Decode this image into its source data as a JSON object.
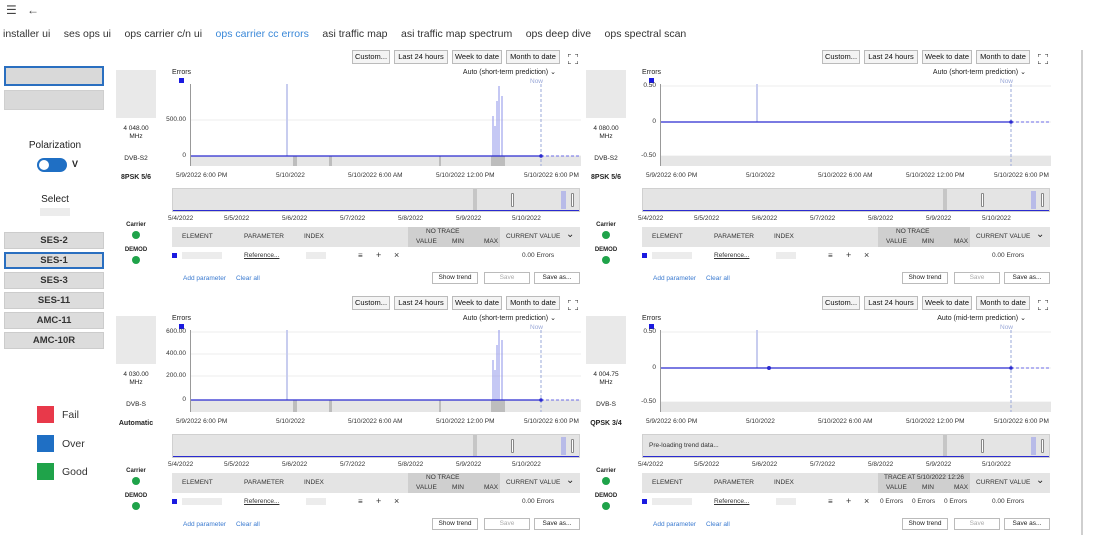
{
  "topbar": {
    "menu_icon": "hamburger-icon",
    "back_icon": "back-arrow-icon"
  },
  "nav": {
    "items": [
      "installer ui",
      "ses ops ui",
      "ops carrier c/n ui",
      "ops carrier cc errors",
      "asi traffic map",
      "asi traffic map spectrum",
      "ops deep dive",
      "ops spectral scan"
    ],
    "active_index": 3
  },
  "left": {
    "polarization_label": "Polarization",
    "polarization_value": "V",
    "select_label": "Select",
    "satellites": [
      "SES-2",
      "SES-1",
      "SES-3",
      "SES-11",
      "AMC-11",
      "AMC-10R"
    ],
    "selected_satellite": "SES-1",
    "legend": [
      {
        "label": "Fail",
        "color": "#e8394a"
      },
      {
        "label": "Over",
        "color": "#1f6fc4"
      },
      {
        "label": "Good",
        "color": "#1fa34a"
      }
    ]
  },
  "colors": {
    "accent": "#3a88d8",
    "series": "#2a2ad0",
    "dot_good": "#1fa34a"
  },
  "panels": [
    {
      "time_buttons": [
        "Custom...",
        "Last 24 hours",
        "Week to date",
        "Month to date"
      ],
      "freq": "4 048.00",
      "freq_unit": "MHz",
      "mode": "DVB-S2",
      "modcod": "8PSK 5/6",
      "carrier_label": "Carrier",
      "demod_label": "DEMOD",
      "series_label": "Errors",
      "prediction": "Auto (short-term prediction)",
      "now_label": "Now",
      "y_ticks": [
        "500.00",
        "0"
      ],
      "x_ticks": [
        "5/9/2022 6:00 PM",
        "5/10/2022",
        "5/10/2022 6:00 AM",
        "5/10/2022 12:00 PM",
        "5/10/2022 6:00 PM"
      ],
      "scroll_ticks": [
        "5/4/2022",
        "5/5/2022",
        "5/6/2022",
        "5/7/2022",
        "5/8/2022",
        "5/9/2022",
        "5/10/2022"
      ],
      "table": {
        "element": "ELEMENT",
        "parameter": "PARAMETER",
        "index": "INDEX",
        "trace": "NO TRACE",
        "value": "VALUE",
        "min": "MIN",
        "max": "MAX",
        "current": "CURRENT VALUE",
        "param_value": "Reference...",
        "current_value": "0.00 Errors"
      },
      "add_parameter": "Add parameter",
      "clear_all": "Clear all",
      "show_trend": "Show trend",
      "save": "Save",
      "save_as": "Save as..."
    },
    {
      "time_buttons": [
        "Custom...",
        "Last 24 hours",
        "Week to date",
        "Month to date"
      ],
      "freq": "4 080.00",
      "freq_unit": "MHz",
      "mode": "DVB-S2",
      "modcod": "8PSK 5/6",
      "carrier_label": "Carrier",
      "demod_label": "DEMOD",
      "series_label": "Errors",
      "prediction": "Auto (short-term prediction)",
      "now_label": "Now",
      "y_ticks": [
        "0.50",
        "0",
        "-0.50"
      ],
      "x_ticks": [
        "5/9/2022 6:00 PM",
        "5/10/2022",
        "5/10/2022 6:00 AM",
        "5/10/2022 12:00 PM",
        "5/10/2022 6:00 PM"
      ],
      "scroll_ticks": [
        "5/4/2022",
        "5/5/2022",
        "5/6/2022",
        "5/7/2022",
        "5/8/2022",
        "5/9/2022",
        "5/10/2022"
      ],
      "table": {
        "element": "ELEMENT",
        "parameter": "PARAMETER",
        "index": "INDEX",
        "trace": "NO TRACE",
        "value": "VALUE",
        "min": "MIN",
        "max": "MAX",
        "current": "CURRENT VALUE",
        "param_value": "Reference...",
        "current_value": "0.00 Errors"
      },
      "add_parameter": "Add parameter",
      "clear_all": "Clear all",
      "show_trend": "Show trend",
      "save": "Save",
      "save_as": "Save as..."
    },
    {
      "time_buttons": [
        "Custom...",
        "Last 24 hours",
        "Week to date",
        "Month to date"
      ],
      "freq": "4 030.00",
      "freq_unit": "MHz",
      "mode": "DVB-S",
      "modcod": "Automatic",
      "carrier_label": "Carrier",
      "demod_label": "DEMOD",
      "series_label": "Errors",
      "prediction": "Auto (short-term prediction)",
      "now_label": "Now",
      "y_ticks": [
        "600.00",
        "400.00",
        "200.00",
        "0"
      ],
      "x_ticks": [
        "5/9/2022 6:00 PM",
        "5/10/2022",
        "5/10/2022 6:00 AM",
        "5/10/2022 12:00 PM",
        "5/10/2022 6:00 PM"
      ],
      "scroll_ticks": [
        "5/4/2022",
        "5/5/2022",
        "5/6/2022",
        "5/7/2022",
        "5/8/2022",
        "5/9/2022",
        "5/10/2022"
      ],
      "table": {
        "element": "ELEMENT",
        "parameter": "PARAMETER",
        "index": "INDEX",
        "trace": "NO TRACE",
        "value": "VALUE",
        "min": "MIN",
        "max": "MAX",
        "current": "CURRENT VALUE",
        "param_value": "Reference...",
        "current_value": "0.00 Errors"
      },
      "add_parameter": "Add parameter",
      "clear_all": "Clear all",
      "show_trend": "Show trend",
      "save": "Save",
      "save_as": "Save as..."
    },
    {
      "time_buttons": [
        "Custom...",
        "Last 24 hours",
        "Week to date",
        "Month to date"
      ],
      "freq": "4 004.75",
      "freq_unit": "MHz",
      "mode": "DVB-S",
      "modcod": "QPSK 3/4",
      "carrier_label": "Carrier",
      "demod_label": "DEMOD",
      "series_label": "Errors",
      "prediction": "Auto (mid-term prediction)",
      "now_label": "Now",
      "y_ticks": [
        "0.50",
        "0",
        "-0.50"
      ],
      "x_ticks": [
        "5/9/2022 6:00 PM",
        "5/10/2022",
        "5/10/2022 6:00 AM",
        "5/10/2022 12:00 PM",
        "5/10/2022 6:00 PM"
      ],
      "scroll_ticks": [
        "5/4/2022",
        "5/5/2022",
        "5/6/2022",
        "5/7/2022",
        "5/8/2022",
        "5/9/2022",
        "5/10/2022"
      ],
      "preloading": "Pre-loading trend data...",
      "table": {
        "element": "ELEMENT",
        "parameter": "PARAMETER",
        "index": "INDEX",
        "trace": "TRACE AT 5/10/2022 12:26",
        "value": "VALUE",
        "min": "MIN",
        "max": "MAX",
        "current": "CURRENT VALUE",
        "param_value": "Reference...",
        "trace_value": "0 Errors",
        "trace_min": "0 Errors",
        "trace_max": "0 Errors",
        "current_value": "0.00 Errors"
      },
      "add_parameter": "Add parameter",
      "clear_all": "Clear all",
      "show_trend": "Show trend",
      "save": "Save",
      "save_as": "Save as..."
    }
  ]
}
